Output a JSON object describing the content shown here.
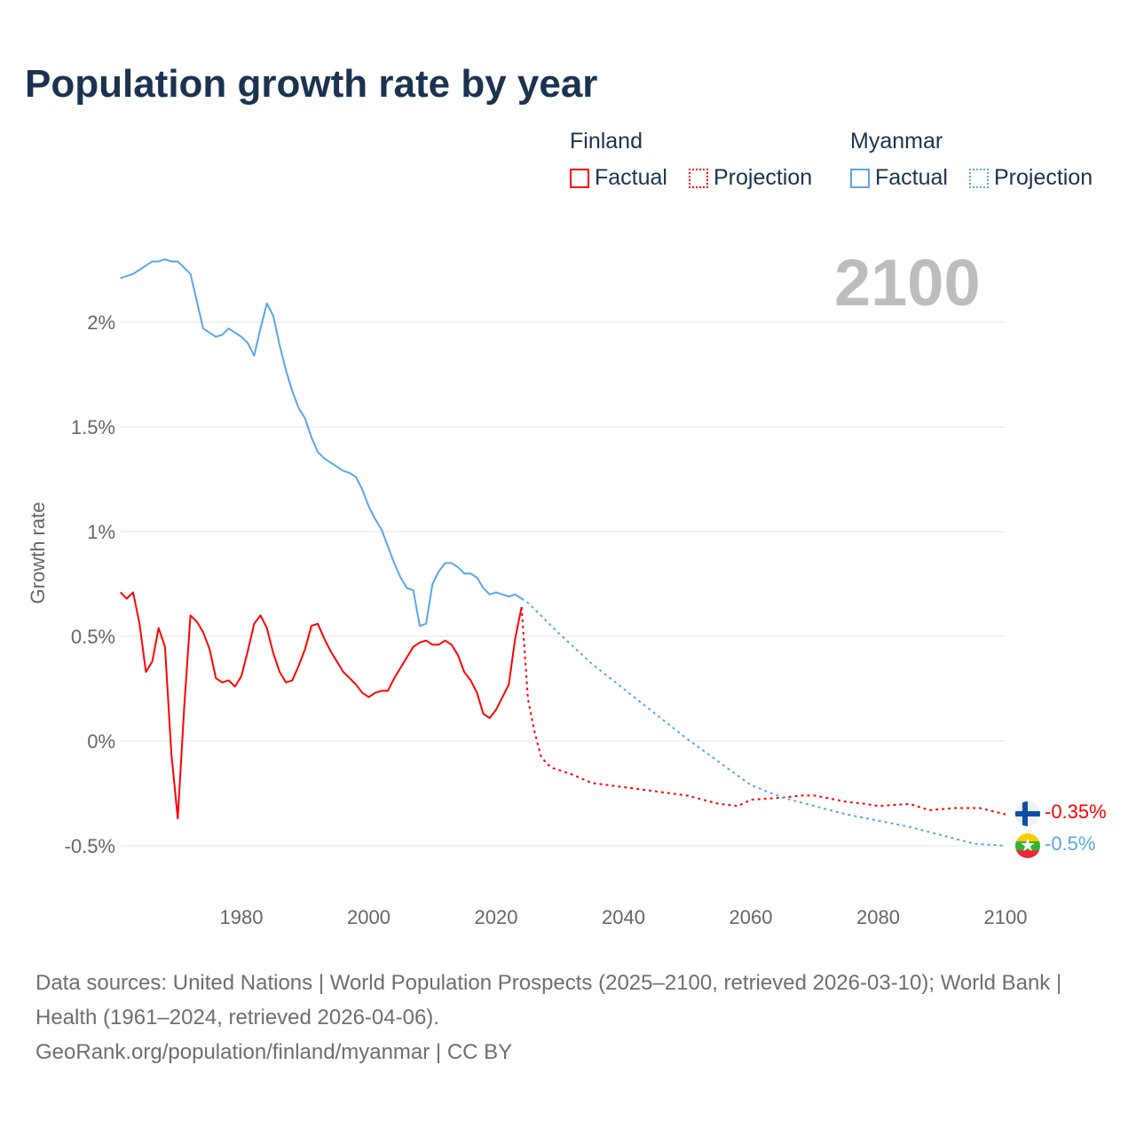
{
  "title": "Population growth rate by year",
  "current_year": "2100",
  "legend": {
    "groups": [
      {
        "name": "Finland",
        "factual": "Factual",
        "projection": "Projection",
        "color": "#ff0000"
      },
      {
        "name": "Myanmar",
        "factual": "Factual",
        "projection": "Projection",
        "color": "#5aa5ea"
      }
    ]
  },
  "footer": {
    "sources": "Data sources: United Nations | World Population Prospects (2025–2100, retrieved 2026-03-10); World Bank | Health (1961–2024, retrieved 2026-04-06).",
    "credit": "GeoRank.org/population/finland/myanmar | CC BY"
  },
  "chart_data": {
    "type": "line",
    "title": "Population growth rate by year",
    "ylabel": "Growth rate",
    "xlabel": "",
    "xlim": [
      1961,
      2100
    ],
    "ylim": [
      -0.65,
      2.35
    ],
    "x_ticks": [
      1980,
      2000,
      2020,
      2040,
      2060,
      2080,
      2100
    ],
    "x_tick_labels": [
      "1980",
      "2000",
      "2020",
      "2040",
      "2060",
      "2080",
      "2100"
    ],
    "y_ticks": [
      -0.5,
      0,
      0.5,
      1,
      1.5,
      2
    ],
    "y_tick_labels": [
      "-0.5%",
      "0%",
      "0.5%",
      "1%",
      "1.5%",
      "2%"
    ],
    "grid": true,
    "legend_position": "top-right",
    "series": [
      {
        "name": "Finland",
        "kind": "factual",
        "color": "#ff0000",
        "start_year": 1961,
        "values": [
          0.71,
          0.68,
          0.71,
          0.56,
          0.33,
          0.38,
          0.54,
          0.45,
          -0.06,
          -0.37,
          0.15,
          0.6,
          0.57,
          0.52,
          0.44,
          0.3,
          0.28,
          0.29,
          0.26,
          0.31,
          0.43,
          0.56,
          0.6,
          0.54,
          0.42,
          0.33,
          0.28,
          0.29,
          0.36,
          0.44,
          0.55,
          0.56,
          0.49,
          0.43,
          0.38,
          0.33,
          0.3,
          0.27,
          0.23,
          0.21,
          0.23,
          0.24,
          0.24,
          0.3,
          0.35,
          0.4,
          0.45,
          0.47,
          0.48,
          0.46,
          0.46,
          0.48,
          0.46,
          0.41,
          0.33,
          0.29,
          0.23,
          0.13,
          0.11,
          0.15,
          0.21,
          0.27,
          0.49,
          0.64
        ]
      },
      {
        "name": "Finland",
        "kind": "projection",
        "color": "#ff0000",
        "points": [
          [
            2024,
            0.64
          ],
          [
            2025,
            0.2
          ],
          [
            2026,
            0.05
          ],
          [
            2027,
            -0.07
          ],
          [
            2028,
            -0.11
          ],
          [
            2029,
            -0.13
          ],
          [
            2030,
            -0.14
          ],
          [
            2032,
            -0.16
          ],
          [
            2035,
            -0.2
          ],
          [
            2040,
            -0.22
          ],
          [
            2045,
            -0.24
          ],
          [
            2050,
            -0.26
          ],
          [
            2055,
            -0.3
          ],
          [
            2058,
            -0.31
          ],
          [
            2060,
            -0.28
          ],
          [
            2065,
            -0.27
          ],
          [
            2068,
            -0.26
          ],
          [
            2070,
            -0.26
          ],
          [
            2075,
            -0.29
          ],
          [
            2078,
            -0.3
          ],
          [
            2080,
            -0.31
          ],
          [
            2085,
            -0.3
          ],
          [
            2088,
            -0.33
          ],
          [
            2092,
            -0.32
          ],
          [
            2096,
            -0.32
          ],
          [
            2100,
            -0.35
          ]
        ]
      },
      {
        "name": "Myanmar",
        "kind": "factual",
        "color": "#5aa5ea",
        "start_year": 1961,
        "values": [
          2.21,
          2.22,
          2.23,
          2.25,
          2.27,
          2.29,
          2.29,
          2.3,
          2.29,
          2.29,
          2.26,
          2.23,
          2.1,
          1.97,
          1.95,
          1.93,
          1.94,
          1.97,
          1.95,
          1.93,
          1.9,
          1.84,
          1.97,
          2.09,
          2.03,
          1.89,
          1.77,
          1.67,
          1.59,
          1.54,
          1.45,
          1.38,
          1.35,
          1.33,
          1.31,
          1.29,
          1.28,
          1.26,
          1.2,
          1.12,
          1.06,
          1.01,
          0.93,
          0.85,
          0.78,
          0.73,
          0.72,
          0.55,
          0.56,
          0.75,
          0.81,
          0.85,
          0.85,
          0.83,
          0.8,
          0.8,
          0.78,
          0.73,
          0.7,
          0.71,
          0.7,
          0.69,
          0.7,
          0.68
        ]
      },
      {
        "name": "Myanmar",
        "kind": "projection",
        "color": "#5aa5ea",
        "points": [
          [
            2024,
            0.68
          ],
          [
            2025,
            0.66
          ],
          [
            2030,
            0.51
          ],
          [
            2035,
            0.37
          ],
          [
            2040,
            0.25
          ],
          [
            2045,
            0.13
          ],
          [
            2050,
            0.01
          ],
          [
            2055,
            -0.1
          ],
          [
            2060,
            -0.21
          ],
          [
            2065,
            -0.27
          ],
          [
            2070,
            -0.31
          ],
          [
            2075,
            -0.35
          ],
          [
            2080,
            -0.38
          ],
          [
            2085,
            -0.41
          ],
          [
            2090,
            -0.45
          ],
          [
            2095,
            -0.49
          ],
          [
            2100,
            -0.5
          ]
        ]
      }
    ],
    "end_labels": [
      {
        "country": "Finland",
        "value": "-0.35%",
        "color": "#ff0000"
      },
      {
        "country": "Myanmar",
        "value": "-0.5%",
        "color": "#5aa5ea"
      }
    ]
  }
}
